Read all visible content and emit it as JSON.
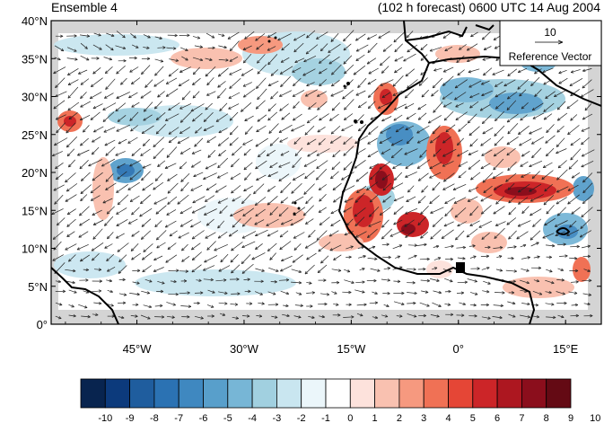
{
  "header": {
    "ensemble_label": "Ensemble 4",
    "forecast_label": "(102 h forecast) 0600 UTC 14 Aug 2004"
  },
  "map": {
    "lat_ticks": [
      "40°N",
      "35°N",
      "30°N",
      "25°N",
      "20°N",
      "15°N",
      "10°N",
      "5°N",
      "0°"
    ],
    "lon_ticks": [
      "45°W",
      "30°W",
      "15°W",
      "0°",
      "15°E"
    ],
    "extent": {
      "lon_min": -57,
      "lon_max": 20,
      "lat_min": 0,
      "lat_max": 40
    }
  },
  "reference_vector": {
    "magnitude": "10",
    "label": "Reference Vector"
  },
  "colorbar": {
    "labels": [
      "-10",
      "-9",
      "-8",
      "-7",
      "-6",
      "-5",
      "-4",
      "-3",
      "-2",
      "-1",
      "0",
      "1",
      "2",
      "3",
      "4",
      "5",
      "6",
      "7",
      "8",
      "9",
      "10"
    ],
    "colors": [
      "#08244f",
      "#0c3a7c",
      "#1f5d9e",
      "#2b72b3",
      "#3f88c0",
      "#589fcb",
      "#77b6d6",
      "#a1d0e0",
      "#c9e6f0",
      "#ebf6fa",
      "#ffffff",
      "#fde2dc",
      "#f9c1b0",
      "#f6997f",
      "#f07155",
      "#e54636",
      "#cc2528",
      "#ad1720",
      "#8b0e1c",
      "#640a14"
    ]
  }
}
